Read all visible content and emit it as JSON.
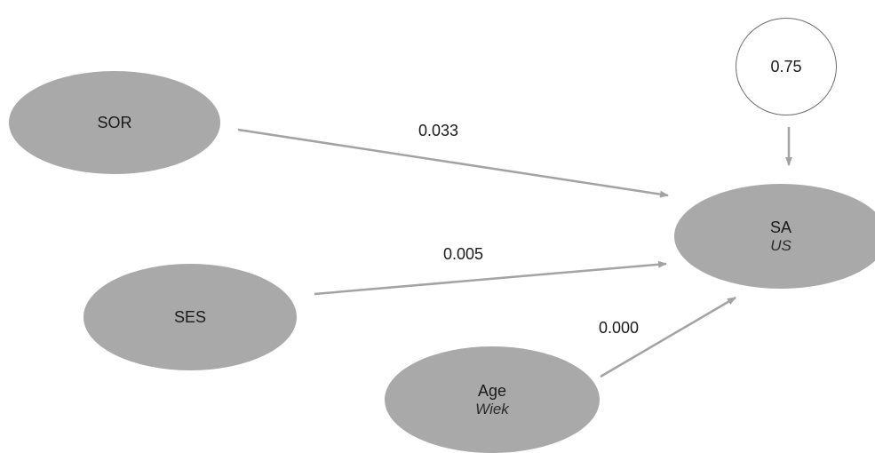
{
  "nodes": {
    "sor": {
      "label": "SOR"
    },
    "ses": {
      "label": "SES"
    },
    "age": {
      "label": "Age",
      "sublabel": "Wiek"
    },
    "sa": {
      "label": "SA",
      "sublabel": "US"
    },
    "error": {
      "label": "0.75"
    }
  },
  "paths": {
    "sor_to_sa": "0.033",
    "ses_to_sa": "0.005",
    "age_to_sa": "0.000"
  },
  "colors": {
    "node_fill": "#a9a9a9",
    "arrow": "#a3a3a3",
    "error_border": "#6e6e6e"
  }
}
